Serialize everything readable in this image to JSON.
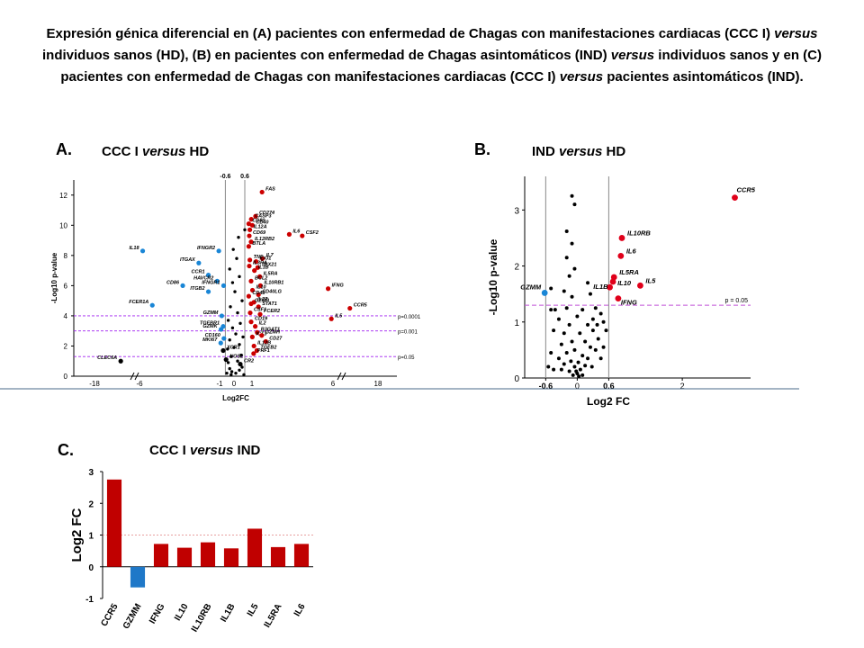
{
  "title_lines": [
    "Expresión génica diferencial en (A) pacientes con enfermedad de Chagas con manifestaciones cardiacas (CCC I) versus",
    "individuos sanos (HD), (B) en pacientes con enfermedad de Chagas asintomáticos (IND) versus individuos sanos y en (C)",
    "pacientes con enfermedad de Chagas con manifestaciones cardiacas (CCC I) versus pacientes asintomáticos (IND)."
  ],
  "panel_a": {
    "label": "A.",
    "title_left": "CCC I ",
    "title_italic": "versus",
    "title_right": " HD"
  },
  "panel_b": {
    "label": "B.",
    "title_left": "IND ",
    "title_italic": "versus",
    "title_right": " HD"
  },
  "panel_c": {
    "label": "C.",
    "title_left": "CCC I ",
    "title_italic": "versus",
    "title_right": " IND"
  },
  "chart_data": [
    {
      "type": "scatter",
      "panel": "A",
      "title": "CCC I versus HD",
      "xlabel": "Log2FC",
      "ylabel": "-Log10 p-value",
      "x_ticks": [
        "-18",
        "-6",
        "-1",
        "0",
        "1",
        "6",
        "18"
      ],
      "y_ticks": [
        0,
        2,
        4,
        6,
        8,
        10,
        12
      ],
      "ylim": [
        0,
        13
      ],
      "x_axis_break": true,
      "vlines": [
        -0.6,
        0.6
      ],
      "vline_labels": [
        "-0.6",
        "0.6"
      ],
      "hlines": [
        {
          "y": 4.0,
          "label": "p=0.0001"
        },
        {
          "y": 3.0,
          "label": "p=0.001"
        },
        {
          "y": 1.3,
          "label": "p=0.05"
        }
      ],
      "colors": {
        "up": "#cc0000",
        "down": "#1a86d6",
        "ns": "#000000"
      },
      "points": [
        {
          "label": "FAS",
          "x": 1.62,
          "y": 12.2,
          "group": "up"
        },
        {
          "label": "CD274",
          "x": 1.22,
          "y": 10.6,
          "group": "up"
        },
        {
          "label": "CASP3",
          "x": 0.96,
          "y": 10.4,
          "group": "up"
        },
        {
          "label": "CD80",
          "x": 0.82,
          "y": 10.1,
          "group": "up"
        },
        {
          "label": "CD40",
          "x": 1.02,
          "y": 10.0,
          "group": "up"
        },
        {
          "label": "IL12A",
          "x": 0.88,
          "y": 9.7,
          "group": "up"
        },
        {
          "label": "CD69",
          "x": 0.85,
          "y": 9.3,
          "group": "up"
        },
        {
          "label": "IL6",
          "x": 3.3,
          "y": 9.4,
          "group": "up"
        },
        {
          "label": "CSF2",
          "x": 4.1,
          "y": 9.3,
          "group": "up"
        },
        {
          "label": "IL12RB2",
          "x": 0.95,
          "y": 8.9,
          "group": "up"
        },
        {
          "label": "BTLA",
          "x": 0.82,
          "y": 8.6,
          "group": "up"
        },
        {
          "label": "IL7",
          "x": 1.65,
          "y": 7.8,
          "group": "up"
        },
        {
          "label": "TNF",
          "x": 0.88,
          "y": 7.7,
          "group": "up"
        },
        {
          "label": "IDO1",
          "x": 1.25,
          "y": 7.6,
          "group": "up"
        },
        {
          "label": "IL3RA",
          "x": 0.85,
          "y": 7.3,
          "group": "up"
        },
        {
          "label": "TBX21",
          "x": 1.35,
          "y": 7.2,
          "group": "up"
        },
        {
          "label": "IL1B",
          "x": 1.15,
          "y": 7.0,
          "group": "up"
        },
        {
          "label": "IL5RA",
          "x": 1.48,
          "y": 6.6,
          "group": "up"
        },
        {
          "label": "BCL2",
          "x": 0.95,
          "y": 6.3,
          "group": "up"
        },
        {
          "label": "IL10RB1",
          "x": 1.52,
          "y": 6.0,
          "group": "up"
        },
        {
          "label": "IFNG",
          "x": 5.7,
          "y": 5.8,
          "group": "up"
        },
        {
          "label": "IL10",
          "x": 1.03,
          "y": 5.7,
          "group": "up"
        },
        {
          "label": "CD40LG",
          "x": 1.4,
          "y": 5.4,
          "group": "up"
        },
        {
          "label": "CD48",
          "x": 0.82,
          "y": 5.3,
          "group": "up"
        },
        {
          "label": "IL27",
          "x": 1.12,
          "y": 4.9,
          "group": "up"
        },
        {
          "label": "GZMB",
          "x": 0.95,
          "y": 4.8,
          "group": "up"
        },
        {
          "label": "STAT1",
          "x": 1.4,
          "y": 4.6,
          "group": "up"
        },
        {
          "label": "CCR5",
          "x": 10.5,
          "y": 4.5,
          "group": "up"
        },
        {
          "label": "CSF1",
          "x": 0.9,
          "y": 4.2,
          "group": "up"
        },
        {
          "label": "FCER2",
          "x": 1.5,
          "y": 4.1,
          "group": "up"
        },
        {
          "label": "IL5",
          "x": 5.9,
          "y": 3.8,
          "group": "up"
        },
        {
          "label": "CD19",
          "x": 0.95,
          "y": 3.6,
          "group": "up"
        },
        {
          "label": "IL2",
          "x": 1.2,
          "y": 3.3,
          "group": "up"
        },
        {
          "label": "B3GAT1",
          "x": 1.32,
          "y": 2.9,
          "group": "up"
        },
        {
          "label": "ICT3",
          "x": 1.02,
          "y": 2.6,
          "group": "up"
        },
        {
          "label": "GZMH",
          "x": 1.6,
          "y": 2.7,
          "group": "up"
        },
        {
          "label": "CD27",
          "x": 1.85,
          "y": 2.3,
          "group": "up"
        },
        {
          "label": "IL12B",
          "x": 1.12,
          "y": 2.0,
          "group": "up"
        },
        {
          "label": "TGFB2",
          "x": 1.3,
          "y": 1.7,
          "group": "up"
        },
        {
          "label": "PRF1",
          "x": 1.1,
          "y": 1.5,
          "group": "up"
        },
        {
          "label": "IL18",
          "x": -5.8,
          "y": 8.3,
          "group": "down"
        },
        {
          "label": "IFNGR2",
          "x": -1.05,
          "y": 8.3,
          "group": "down"
        },
        {
          "label": "ITGAX",
          "x": -2.3,
          "y": 7.5,
          "group": "down"
        },
        {
          "label": "CCR1",
          "x": -1.7,
          "y": 6.7,
          "group": "down"
        },
        {
          "label": "HAVCR2",
          "x": -1.15,
          "y": 6.3,
          "group": "down"
        },
        {
          "label": "CD86",
          "x": -3.3,
          "y": 6.0,
          "group": "down"
        },
        {
          "label": "IFNGR1",
          "x": -0.72,
          "y": 6.0,
          "group": "down"
        },
        {
          "label": "ITGB2",
          "x": -1.7,
          "y": 5.6,
          "group": "down"
        },
        {
          "label": "FCER1A",
          "x": -5.2,
          "y": 4.7,
          "group": "down"
        },
        {
          "label": "GZMM",
          "x": -0.85,
          "y": 4.0,
          "group": "down"
        },
        {
          "label": "TGFBR1",
          "x": -0.75,
          "y": 3.3,
          "group": "down"
        },
        {
          "label": "GZMK",
          "x": -0.9,
          "y": 3.1,
          "group": "down"
        },
        {
          "label": "CD160",
          "x": -0.7,
          "y": 2.5,
          "group": "down"
        },
        {
          "label": "MKI67",
          "x": -0.92,
          "y": 2.2,
          "group": "down"
        },
        {
          "label": "CLEC6A",
          "x": -11.0,
          "y": 1.0,
          "group": "ns"
        },
        {
          "label": "XCR1",
          "x": -0.75,
          "y": 1.7,
          "group": "ns"
        },
        {
          "label": "NOS2",
          "x": -0.55,
          "y": 1.1,
          "group": "ns"
        },
        {
          "label": "CR2",
          "x": 0.35,
          "y": 0.8,
          "group": "ns"
        }
      ],
      "ns_points": [
        {
          "x": -0.5,
          "y": 0.2
        },
        {
          "x": -0.3,
          "y": 0.5
        },
        {
          "x": -0.15,
          "y": 0.3
        },
        {
          "x": 0.1,
          "y": 0.2
        },
        {
          "x": 0.3,
          "y": 0.4
        },
        {
          "x": 0.45,
          "y": 0.6
        },
        {
          "x": -0.4,
          "y": 0.9
        },
        {
          "x": 0.2,
          "y": 1.0
        },
        {
          "x": -0.2,
          "y": 1.3
        },
        {
          "x": 0.4,
          "y": 1.4
        },
        {
          "x": -0.45,
          "y": 1.8
        },
        {
          "x": 0.0,
          "y": 1.9
        },
        {
          "x": 0.3,
          "y": 2.1
        },
        {
          "x": -0.3,
          "y": 2.4
        },
        {
          "x": 0.5,
          "y": 2.6
        },
        {
          "x": 0.1,
          "y": 2.8
        },
        {
          "x": -0.1,
          "y": 3.2
        },
        {
          "x": 0.35,
          "y": 3.5
        },
        {
          "x": -0.4,
          "y": 3.7
        },
        {
          "x": 0.2,
          "y": 4.2
        },
        {
          "x": -0.25,
          "y": 4.6
        },
        {
          "x": 0.45,
          "y": 5.0
        },
        {
          "x": 0.05,
          "y": 5.6
        },
        {
          "x": -0.1,
          "y": 6.2
        },
        {
          "x": 0.3,
          "y": 6.6
        },
        {
          "x": -0.3,
          "y": 7.1
        },
        {
          "x": 0.15,
          "y": 7.8
        },
        {
          "x": -0.05,
          "y": 8.4
        },
        {
          "x": 0.25,
          "y": 9.2
        },
        {
          "x": 0.6,
          "y": 9.7
        },
        {
          "x": -0.2,
          "y": 0.1
        },
        {
          "x": 0.55,
          "y": 0.1
        }
      ]
    },
    {
      "type": "scatter",
      "panel": "B",
      "title": "IND versus HD",
      "xlabel": "Log2 FC",
      "ylabel": "-Log10 p-value",
      "x_ticks": [
        -0.6,
        0,
        0.6,
        2
      ],
      "y_ticks": [
        0,
        1,
        2,
        3
      ],
      "xlim": [
        -1.0,
        3.3
      ],
      "ylim": [
        0,
        3.6
      ],
      "vlines": [
        -0.6,
        0.6
      ],
      "hlines": [
        {
          "y": 1.3,
          "label": "p = 0.05"
        }
      ],
      "colors": {
        "up": "#e0001a",
        "down": "#1a86d6",
        "ns": "#000000"
      },
      "points": [
        {
          "label": "CCR5",
          "x": 3.0,
          "y": 3.22,
          "group": "up"
        },
        {
          "label": "IL10RB",
          "x": 0.85,
          "y": 2.5,
          "group": "up"
        },
        {
          "label": "IL6",
          "x": 0.83,
          "y": 2.18,
          "group": "up"
        },
        {
          "label": "IL5RA",
          "x": 0.7,
          "y": 1.8,
          "group": "up"
        },
        {
          "label": "IL5",
          "x": 1.2,
          "y": 1.65,
          "group": "up"
        },
        {
          "label": "IL10",
          "x": 0.68,
          "y": 1.72,
          "group": "up"
        },
        {
          "label": "IL1B",
          "x": 0.62,
          "y": 1.62,
          "group": "up"
        },
        {
          "label": "IFNG",
          "x": 0.78,
          "y": 1.42,
          "group": "up"
        },
        {
          "label": "GZMM",
          "x": -0.62,
          "y": 1.52,
          "group": "down"
        }
      ],
      "ns_points": [
        {
          "x": -0.1,
          "y": 3.25
        },
        {
          "x": -0.05,
          "y": 3.1
        },
        {
          "x": -0.2,
          "y": 2.62
        },
        {
          "x": -0.1,
          "y": 2.4
        },
        {
          "x": -0.2,
          "y": 2.15
        },
        {
          "x": -0.05,
          "y": 1.95
        },
        {
          "x": -0.15,
          "y": 1.82
        },
        {
          "x": 0.2,
          "y": 1.7
        },
        {
          "x": -0.25,
          "y": 1.55
        },
        {
          "x": -0.5,
          "y": 1.6
        },
        {
          "x": -0.1,
          "y": 1.45
        },
        {
          "x": 0.25,
          "y": 1.5
        },
        {
          "x": -0.5,
          "y": 1.22
        },
        {
          "x": -0.42,
          "y": 1.22
        },
        {
          "x": -0.2,
          "y": 1.25
        },
        {
          "x": 0.1,
          "y": 1.22
        },
        {
          "x": 0.35,
          "y": 1.25
        },
        {
          "x": -0.35,
          "y": 1.05
        },
        {
          "x": 0.0,
          "y": 1.1
        },
        {
          "x": 0.45,
          "y": 1.15
        },
        {
          "x": -0.15,
          "y": 0.95
        },
        {
          "x": 0.2,
          "y": 0.95
        },
        {
          "x": 0.5,
          "y": 1.0
        },
        {
          "x": -0.45,
          "y": 0.85
        },
        {
          "x": -0.25,
          "y": 0.8
        },
        {
          "x": 0.05,
          "y": 0.8
        },
        {
          "x": 0.3,
          "y": 0.85
        },
        {
          "x": 0.4,
          "y": 0.7
        },
        {
          "x": -0.1,
          "y": 0.65
        },
        {
          "x": 0.15,
          "y": 0.65
        },
        {
          "x": -0.3,
          "y": 0.6
        },
        {
          "x": 0.25,
          "y": 0.55
        },
        {
          "x": -0.05,
          "y": 0.5
        },
        {
          "x": 0.35,
          "y": 0.5
        },
        {
          "x": -0.2,
          "y": 0.45
        },
        {
          "x": 0.1,
          "y": 0.4
        },
        {
          "x": -0.35,
          "y": 0.35
        },
        {
          "x": 0.2,
          "y": 0.35
        },
        {
          "x": -0.12,
          "y": 0.3
        },
        {
          "x": 0.02,
          "y": 0.28
        },
        {
          "x": -0.25,
          "y": 0.25
        },
        {
          "x": 0.15,
          "y": 0.22
        },
        {
          "x": -0.05,
          "y": 0.2
        },
        {
          "x": 0.06,
          "y": 0.15
        },
        {
          "x": -0.15,
          "y": 0.12
        },
        {
          "x": 0.0,
          "y": 0.08
        },
        {
          "x": -0.08,
          "y": 0.05
        },
        {
          "x": 0.1,
          "y": 0.05
        },
        {
          "x": 0.03,
          "y": 0.03
        },
        {
          "x": -0.02,
          "y": 0.12
        },
        {
          "x": -0.5,
          "y": 0.45
        },
        {
          "x": -0.55,
          "y": 0.2
        },
        {
          "x": -0.45,
          "y": 0.15
        },
        {
          "x": -0.3,
          "y": 0.15
        },
        {
          "x": 0.28,
          "y": 0.2
        },
        {
          "x": 0.45,
          "y": 0.35
        },
        {
          "x": 0.5,
          "y": 0.55
        },
        {
          "x": 0.38,
          "y": 0.95
        },
        {
          "x": 0.55,
          "y": 0.85
        },
        {
          "x": 0.3,
          "y": 1.05
        }
      ]
    },
    {
      "type": "bar",
      "panel": "C",
      "title": "CCC I versus IND",
      "ylabel": "Log2 FC",
      "categories": [
        "CCR5",
        "GZMM",
        "IFNG",
        "IL10",
        "IL10RB",
        "IL1B",
        "IL5",
        "IL5RA",
        "IL6"
      ],
      "values": [
        2.75,
        -0.65,
        0.72,
        0.6,
        0.77,
        0.58,
        1.2,
        0.62,
        0.72
      ],
      "colors": [
        "#c00000",
        "#1f78c8",
        "#c00000",
        "#c00000",
        "#c00000",
        "#c00000",
        "#c00000",
        "#c00000",
        "#c00000"
      ],
      "ylim": [
        -1,
        3
      ],
      "y_ticks": [
        -1,
        0,
        1,
        2,
        3
      ],
      "reference_line": 1
    }
  ]
}
